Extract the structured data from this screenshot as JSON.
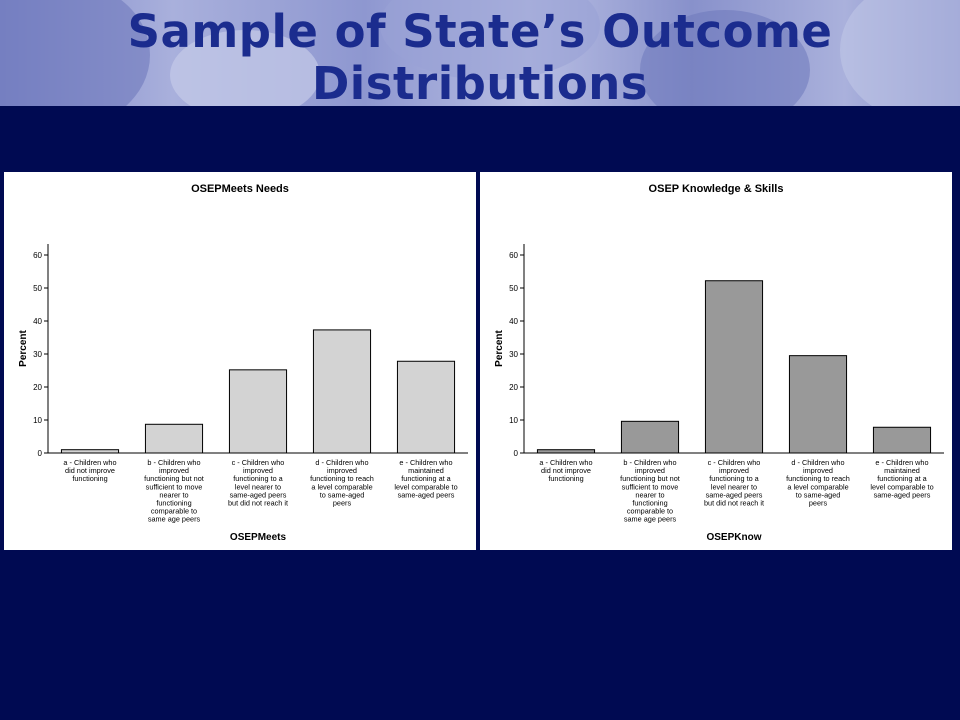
{
  "slide": {
    "title": "Sample of State’s Outcome Distributions"
  },
  "chart_data": [
    {
      "type": "bar",
      "title": "OSEPMeets Needs",
      "xlabel": "OSEPMeets",
      "ylabel": "Percent",
      "ylim": [
        0,
        60
      ],
      "yticks": [
        0,
        10,
        20,
        30,
        40,
        50,
        60
      ],
      "grid": false,
      "bar_color": "#d3d3d3",
      "categories": [
        [
          "a - Children who",
          "did not improve",
          "functioning"
        ],
        [
          "b - Children who",
          "improved",
          "functioning but not",
          "sufficient to move",
          "nearer to",
          "functioning",
          "comparable to",
          "same age peers"
        ],
        [
          "c - Children who",
          "improved",
          "functioning to a",
          "level nearer to",
          "same-aged peers",
          "but did not reach it"
        ],
        [
          "d - Children who",
          "improved",
          "functioning to reach",
          "a level comparable",
          "to same-aged",
          "peers"
        ],
        [
          "e - Children who",
          "maintained",
          "functioning at a",
          "level comparable to",
          "same-aged peers"
        ]
      ],
      "values": [
        1,
        8.7,
        25.2,
        37.3,
        27.8
      ]
    },
    {
      "type": "bar",
      "title": "OSEP Knowledge & Skills",
      "xlabel": "OSEPKnow",
      "ylabel": "Percent",
      "ylim": [
        0,
        60
      ],
      "yticks": [
        0,
        10,
        20,
        30,
        40,
        50,
        60
      ],
      "grid": false,
      "bar_color": "#999999",
      "categories": [
        [
          "a - Children who",
          "did not improve",
          "functioning"
        ],
        [
          "b - Children who",
          "improved",
          "functioning but not",
          "sufficient to move",
          "nearer to",
          "functioning",
          "comparable to",
          "same age peers"
        ],
        [
          "c - Children who",
          "improved",
          "functioning to a",
          "level nearer to",
          "same-aged peers",
          "but did not reach it"
        ],
        [
          "d - Children who",
          "improved",
          "functioning to reach",
          "a level comparable",
          "to same-aged",
          "peers"
        ],
        [
          "e - Children who",
          "maintained",
          "functioning at a",
          "level comparable to",
          "same-aged peers"
        ]
      ],
      "values": [
        1,
        9.6,
        52.2,
        29.5,
        7.8
      ]
    }
  ]
}
